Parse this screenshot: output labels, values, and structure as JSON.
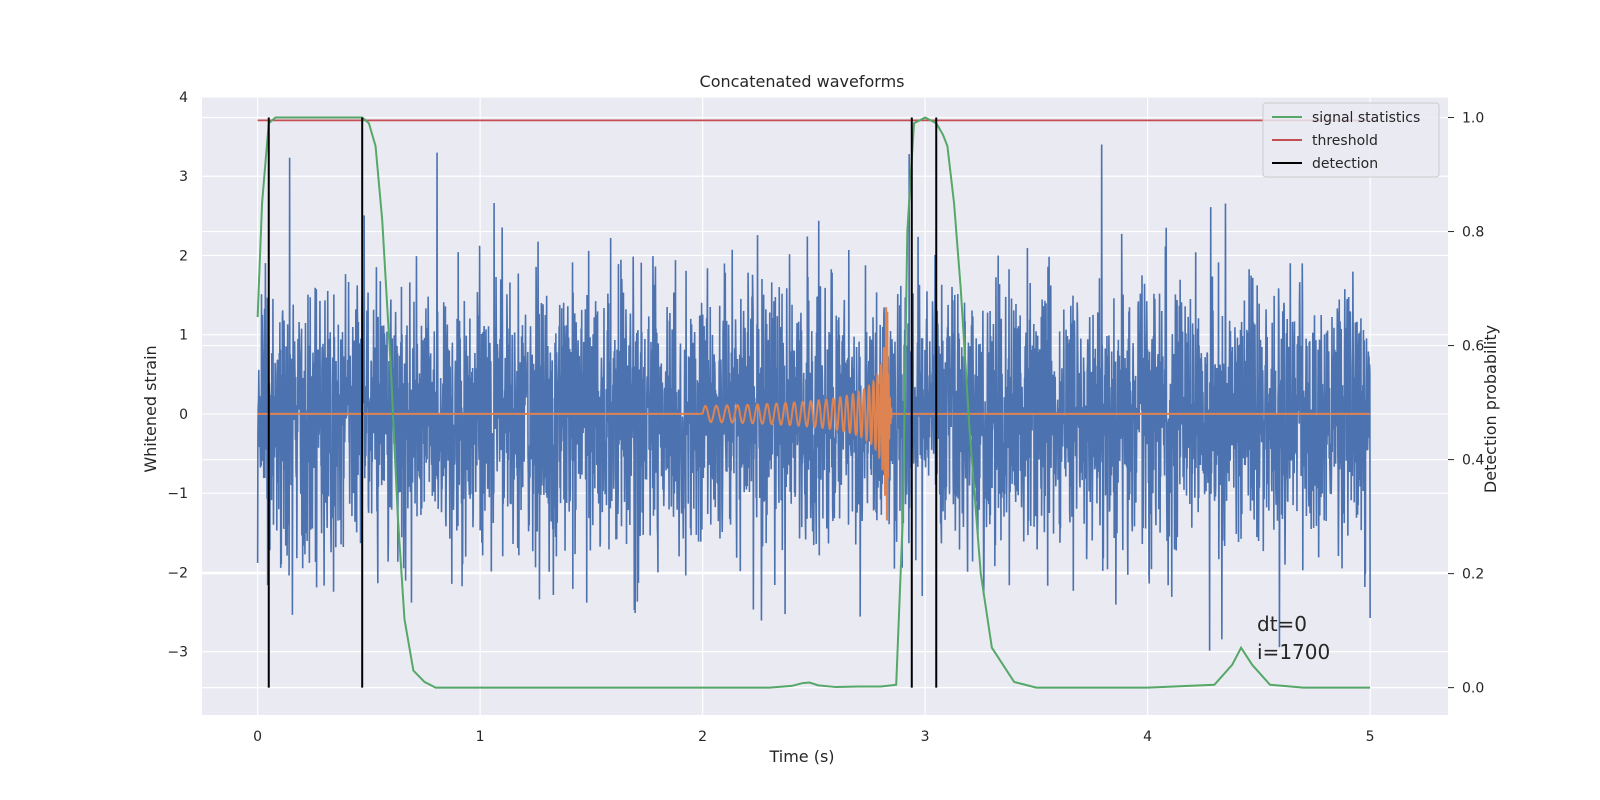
{
  "chart_data": {
    "type": "line",
    "title": "Concatenated waveforms",
    "xlabel": "Time (s)",
    "ylabel": "Whitened strain",
    "y2label": "Detection probability",
    "xlim": [
      -0.25,
      5.35
    ],
    "ylim": [
      -3.8,
      4.0
    ],
    "y2lim": [
      -0.048,
      1.036
    ],
    "xticks": [
      0,
      1,
      2,
      3,
      4,
      5
    ],
    "yticks": [
      -3,
      -2,
      -1,
      0,
      1,
      2,
      3,
      4
    ],
    "y2ticks": [
      0.0,
      0.2,
      0.4,
      0.6,
      0.8,
      1.0
    ],
    "xtick_labels": [
      "0",
      "1",
      "2",
      "3",
      "4",
      "5"
    ],
    "ytick_labels": [
      "−3",
      "−2",
      "−1",
      "0",
      "1",
      "2",
      "3",
      "4"
    ],
    "y2tick_labels": [
      "0.0",
      "0.2",
      "0.4",
      "0.6",
      "0.8",
      "1.0"
    ],
    "grid": true,
    "legend_position": "top-right",
    "series": [
      {
        "name": "",
        "axis": "left",
        "color": "#4c72b0",
        "kind": "noise",
        "x_range": [
          0,
          5
        ],
        "approx_std": 0.85,
        "approx_min": -3.4,
        "approx_max": 3.4
      },
      {
        "name": "",
        "axis": "left",
        "color": "#dd8452",
        "kind": "chirp",
        "x_range": [
          2.0,
          2.85
        ],
        "start_amplitude": 0.1,
        "peak_amplitude": 1.35,
        "merger_time": 2.83
      },
      {
        "name": "signal statistics",
        "axis": "right",
        "color": "#55a868",
        "x": [
          0.0,
          0.02,
          0.05,
          0.08,
          0.1,
          0.2,
          0.3,
          0.4,
          0.47,
          0.5,
          0.53,
          0.56,
          0.6,
          0.63,
          0.66,
          0.7,
          0.75,
          0.8,
          1.0,
          2.0,
          2.3,
          2.4,
          2.45,
          2.48,
          2.52,
          2.6,
          2.7,
          2.8,
          2.87,
          2.9,
          2.92,
          2.95,
          3.0,
          3.05,
          3.08,
          3.1,
          3.13,
          3.16,
          3.2,
          3.25,
          3.3,
          3.4,
          3.5,
          4.0,
          4.3,
          4.38,
          4.42,
          4.47,
          4.55,
          4.7,
          5.0
        ],
        "values": [
          0.65,
          0.85,
          0.99,
          1.0,
          1.0,
          1.0,
          1.0,
          1.0,
          1.0,
          0.99,
          0.95,
          0.82,
          0.55,
          0.3,
          0.12,
          0.03,
          0.01,
          0.0,
          0.0,
          0.0,
          0.0,
          0.003,
          0.008,
          0.009,
          0.004,
          0.001,
          0.002,
          0.002,
          0.005,
          0.3,
          0.8,
          0.99,
          1.0,
          0.99,
          0.97,
          0.95,
          0.85,
          0.7,
          0.45,
          0.2,
          0.07,
          0.01,
          0.0,
          0.0,
          0.005,
          0.04,
          0.07,
          0.04,
          0.005,
          0.0,
          0.0
        ]
      },
      {
        "name": "threshold",
        "axis": "right",
        "color": "#c44e52",
        "x": [
          0,
          5
        ],
        "values": [
          0.995,
          0.995
        ]
      },
      {
        "name": "detection",
        "axis": "right",
        "color": "#000000",
        "kind": "vlines",
        "x": [
          0.05,
          0.47,
          2.94,
          3.05
        ],
        "ymin": 0.0,
        "ymax": 1.0
      }
    ],
    "annotations": [
      "dt=0",
      "i=1700"
    ]
  }
}
